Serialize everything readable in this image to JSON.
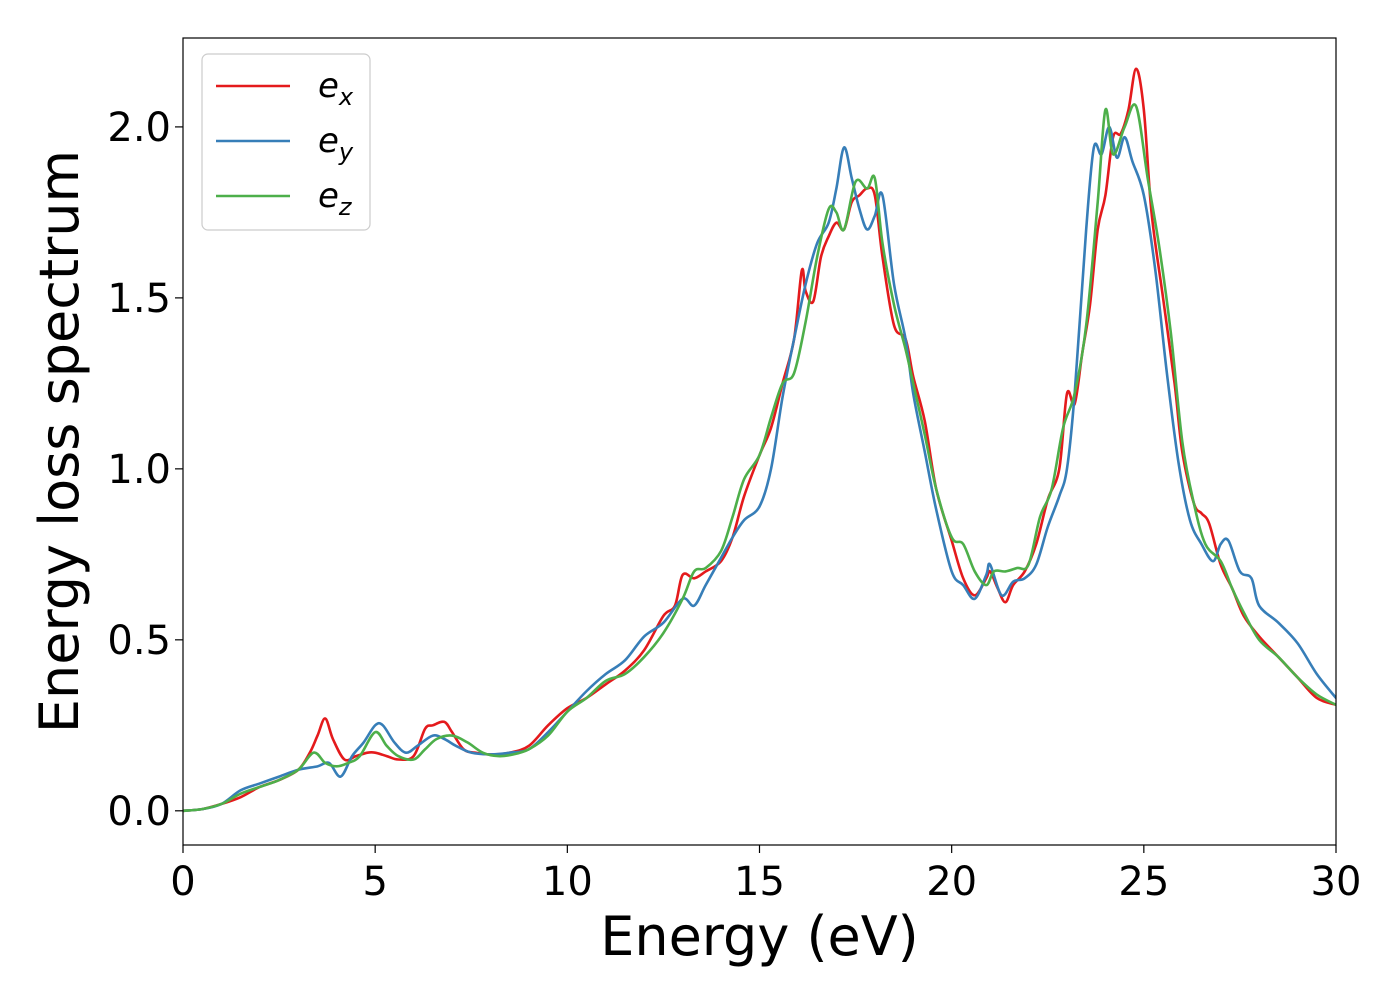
{
  "chart_data": {
    "type": "line",
    "xlabel": "Energy (eV)",
    "ylabel": "Energy loss spectrum",
    "xlim": [
      0,
      30
    ],
    "ylim": [
      -0.1,
      2.26
    ],
    "xticks": [
      0,
      5,
      10,
      15,
      20,
      25,
      30
    ],
    "yticks": [
      0.0,
      0.5,
      1.0,
      1.5,
      2.0
    ],
    "xtick_labels": [
      "0",
      "5",
      "10",
      "15",
      "20",
      "25",
      "30"
    ],
    "ytick_labels": [
      "0.0",
      "0.5",
      "1.0",
      "1.5",
      "2.0"
    ],
    "grid": false,
    "legend_position": "top-left",
    "series": [
      {
        "name": "e",
        "subscript": "x",
        "color": "#e41a1c",
        "x": [
          0,
          0.5,
          1,
          1.5,
          2,
          2.5,
          3,
          3.3,
          3.5,
          3.7,
          3.9,
          4.2,
          4.5,
          4.8,
          5,
          5.3,
          5.6,
          6,
          6.3,
          6.5,
          6.8,
          7,
          7.3,
          7.6,
          8,
          8.5,
          9,
          9.5,
          10,
          10.5,
          11,
          11.5,
          12,
          12.5,
          12.8,
          13,
          13.3,
          13.6,
          14,
          14.3,
          14.6,
          15,
          15.3,
          15.6,
          15.9,
          16.1,
          16.2,
          16.4,
          16.6,
          16.8,
          17,
          17.2,
          17.4,
          17.6,
          17.8,
          18,
          18.2,
          18.5,
          18.8,
          19,
          19.3,
          19.6,
          20,
          20.3,
          20.6,
          20.9,
          21,
          21.2,
          21.4,
          21.6,
          21.9,
          22.2,
          22.5,
          22.8,
          23,
          23.2,
          23.4,
          23.6,
          23.8,
          24,
          24.2,
          24.4,
          24.6,
          24.8,
          25,
          25.2,
          25.5,
          25.8,
          26,
          26.3,
          26.5,
          26.7,
          27,
          27.3,
          27.6,
          28,
          28.5,
          29,
          29.5,
          30
        ],
        "values": [
          0,
          0.005,
          0.02,
          0.04,
          0.07,
          0.09,
          0.12,
          0.17,
          0.22,
          0.27,
          0.21,
          0.15,
          0.16,
          0.17,
          0.17,
          0.16,
          0.15,
          0.16,
          0.24,
          0.25,
          0.26,
          0.23,
          0.18,
          0.17,
          0.165,
          0.17,
          0.19,
          0.25,
          0.3,
          0.33,
          0.37,
          0.41,
          0.47,
          0.57,
          0.6,
          0.69,
          0.68,
          0.7,
          0.73,
          0.8,
          0.92,
          1.04,
          1.12,
          1.25,
          1.38,
          1.58,
          1.52,
          1.49,
          1.62,
          1.68,
          1.72,
          1.7,
          1.78,
          1.8,
          1.82,
          1.8,
          1.62,
          1.42,
          1.38,
          1.27,
          1.14,
          0.94,
          0.79,
          0.68,
          0.63,
          0.68,
          0.7,
          0.65,
          0.61,
          0.66,
          0.7,
          0.78,
          0.91,
          1.0,
          1.22,
          1.19,
          1.34,
          1.48,
          1.7,
          1.8,
          1.97,
          1.98,
          2.05,
          2.17,
          2.05,
          1.75,
          1.5,
          1.25,
          1.05,
          0.9,
          0.87,
          0.84,
          0.72,
          0.65,
          0.57,
          0.51,
          0.45,
          0.39,
          0.33,
          0.31
        ]
      },
      {
        "name": "e",
        "subscript": "y",
        "color": "#377eb8",
        "x": [
          0,
          0.5,
          1,
          1.5,
          2,
          2.5,
          3,
          3.5,
          3.8,
          4.1,
          4.4,
          4.7,
          5,
          5.2,
          5.5,
          5.8,
          6.1,
          6.5,
          6.8,
          7.1,
          7.5,
          8,
          8.5,
          9,
          9.5,
          10,
          10.5,
          11,
          11.5,
          12,
          12.5,
          13,
          13.3,
          13.6,
          14,
          14.3,
          14.6,
          15,
          15.3,
          15.6,
          15.9,
          16.2,
          16.5,
          16.8,
          17,
          17.2,
          17.4,
          17.6,
          17.8,
          18,
          18.2,
          18.5,
          18.8,
          19,
          19.3,
          19.6,
          20,
          20.3,
          20.6,
          20.9,
          21,
          21.3,
          21.6,
          21.9,
          22.2,
          22.5,
          22.8,
          23,
          23.2,
          23.5,
          23.7,
          23.9,
          24.1,
          24.3,
          24.5,
          24.7,
          25,
          25.3,
          25.6,
          25.9,
          26.2,
          26.5,
          26.8,
          27,
          27.2,
          27.5,
          27.8,
          28,
          28.5,
          29,
          29.5,
          30
        ],
        "values": [
          0,
          0.005,
          0.02,
          0.06,
          0.08,
          0.1,
          0.12,
          0.13,
          0.14,
          0.1,
          0.16,
          0.2,
          0.25,
          0.25,
          0.2,
          0.17,
          0.19,
          0.22,
          0.21,
          0.19,
          0.17,
          0.165,
          0.17,
          0.18,
          0.23,
          0.29,
          0.35,
          0.4,
          0.44,
          0.51,
          0.55,
          0.62,
          0.6,
          0.66,
          0.74,
          0.8,
          0.85,
          0.89,
          1.0,
          1.21,
          1.38,
          1.54,
          1.66,
          1.72,
          1.82,
          1.94,
          1.85,
          1.76,
          1.7,
          1.74,
          1.8,
          1.54,
          1.38,
          1.22,
          1.05,
          0.88,
          0.7,
          0.66,
          0.62,
          0.69,
          0.72,
          0.63,
          0.67,
          0.68,
          0.72,
          0.83,
          0.92,
          1.0,
          1.22,
          1.7,
          1.94,
          1.92,
          2.0,
          1.91,
          1.97,
          1.9,
          1.8,
          1.58,
          1.28,
          1.02,
          0.85,
          0.78,
          0.73,
          0.78,
          0.79,
          0.7,
          0.68,
          0.6,
          0.55,
          0.49,
          0.4,
          0.33
        ]
      },
      {
        "name": "e",
        "subscript": "z",
        "color": "#4daf4a",
        "x": [
          0,
          0.5,
          1,
          1.5,
          2,
          2.5,
          3,
          3.4,
          3.7,
          4,
          4.3,
          4.6,
          5,
          5.3,
          5.6,
          6,
          6.3,
          6.6,
          7,
          7.4,
          7.8,
          8.2,
          8.6,
          9,
          9.5,
          10,
          10.5,
          11,
          11.5,
          12,
          12.5,
          13,
          13.3,
          13.6,
          14,
          14.3,
          14.6,
          15,
          15.3,
          15.6,
          15.9,
          16.2,
          16.5,
          16.8,
          17,
          17.2,
          17.5,
          17.8,
          18,
          18.2,
          18.5,
          18.8,
          19,
          19.3,
          19.6,
          20,
          20.3,
          20.6,
          20.9,
          21.1,
          21.4,
          21.7,
          22,
          22.3,
          22.6,
          22.9,
          23.2,
          23.5,
          23.8,
          24,
          24.2,
          24.5,
          24.8,
          25.1,
          25.4,
          25.7,
          26,
          26.3,
          26.6,
          27,
          27.3,
          27.6,
          28,
          28.5,
          29,
          29.5,
          30
        ],
        "values": [
          0,
          0.005,
          0.02,
          0.05,
          0.07,
          0.09,
          0.12,
          0.17,
          0.14,
          0.13,
          0.14,
          0.16,
          0.23,
          0.19,
          0.16,
          0.15,
          0.18,
          0.21,
          0.22,
          0.2,
          0.17,
          0.16,
          0.165,
          0.18,
          0.22,
          0.29,
          0.33,
          0.38,
          0.4,
          0.45,
          0.52,
          0.62,
          0.7,
          0.71,
          0.76,
          0.86,
          0.97,
          1.04,
          1.15,
          1.25,
          1.28,
          1.43,
          1.62,
          1.76,
          1.75,
          1.7,
          1.84,
          1.82,
          1.85,
          1.66,
          1.48,
          1.35,
          1.25,
          1.1,
          0.94,
          0.8,
          0.78,
          0.7,
          0.66,
          0.7,
          0.7,
          0.71,
          0.72,
          0.86,
          0.94,
          1.12,
          1.22,
          1.42,
          1.78,
          2.05,
          1.92,
          2.0,
          2.06,
          1.85,
          1.65,
          1.4,
          1.08,
          0.9,
          0.78,
          0.73,
          0.65,
          0.58,
          0.5,
          0.45,
          0.39,
          0.34,
          0.31
        ]
      }
    ]
  }
}
